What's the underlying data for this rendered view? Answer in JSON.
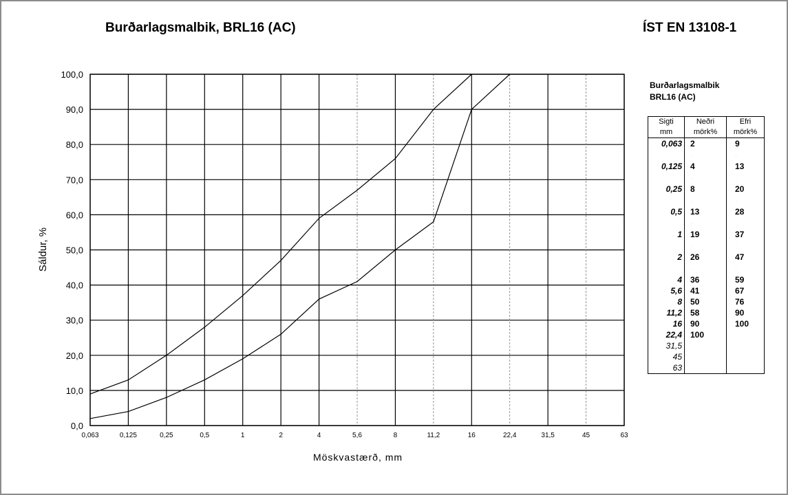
{
  "header": {
    "title": "Burðarlagsmalbik, BRL16 (AC)",
    "standard": "ÍST EN 13108-1"
  },
  "side": {
    "title_line1": "Burðarlagsmalbik",
    "title_line2": "BRL16 (AC)",
    "col_sieve": "Sigti",
    "col_sieve_unit": "mm",
    "col_lower": "Neðri",
    "col_lower_unit": "mörk%",
    "col_upper": "Efri",
    "col_upper_unit": "mörk%",
    "rows": [
      {
        "sieve": "0,063",
        "lower": "2",
        "upper": "9"
      },
      {
        "sieve": "",
        "lower": "",
        "upper": ""
      },
      {
        "sieve": "0,125",
        "lower": "4",
        "upper": "13"
      },
      {
        "sieve": "",
        "lower": "",
        "upper": ""
      },
      {
        "sieve": "0,25",
        "lower": "8",
        "upper": "20"
      },
      {
        "sieve": "",
        "lower": "",
        "upper": ""
      },
      {
        "sieve": "0,5",
        "lower": "13",
        "upper": "28"
      },
      {
        "sieve": "",
        "lower": "",
        "upper": ""
      },
      {
        "sieve": "1",
        "lower": "19",
        "upper": "37"
      },
      {
        "sieve": "",
        "lower": "",
        "upper": ""
      },
      {
        "sieve": "2",
        "lower": "26",
        "upper": "47"
      },
      {
        "sieve": "",
        "lower": "",
        "upper": ""
      },
      {
        "sieve": "4",
        "lower": "36",
        "upper": "59"
      },
      {
        "sieve": "5,6",
        "lower": "41",
        "upper": "67"
      },
      {
        "sieve": "8",
        "lower": "50",
        "upper": "76"
      },
      {
        "sieve": "11,2",
        "lower": "58",
        "upper": "90"
      },
      {
        "sieve": "16",
        "lower": "90",
        "upper": "100"
      },
      {
        "sieve": "22,4",
        "lower": "100",
        "upper": ""
      },
      {
        "sieve": "31,5",
        "lower": "",
        "upper": ""
      },
      {
        "sieve": "45",
        "lower": "",
        "upper": ""
      },
      {
        "sieve": "63",
        "lower": "",
        "upper": ""
      }
    ]
  },
  "chart_data": {
    "type": "line",
    "title": "Burðarlagsmalbik, BRL16 (AC)",
    "xlabel": "Möskvastærð,  mm",
    "ylabel": "Sáldur, %",
    "ylim": [
      0,
      100
    ],
    "y_ticks": [
      "0,0",
      "10,0",
      "20,0",
      "30,0",
      "40,0",
      "50,0",
      "60,0",
      "70,0",
      "80,0",
      "90,0",
      "100,0"
    ],
    "x_tick_labels": [
      "0,063",
      "0,125",
      "0,25",
      "0,5",
      "1",
      "2",
      "4",
      "5,6",
      "8",
      "11,2",
      "16",
      "22,4",
      "31,5",
      "45",
      "63"
    ],
    "x_tick_style": [
      "major",
      "major",
      "major",
      "major",
      "major",
      "major",
      "major",
      "minor",
      "major",
      "minor",
      "major",
      "minor",
      "major",
      "minor",
      "major"
    ],
    "grid": true,
    "series": [
      {
        "values": [
          9,
          13,
          20,
          28,
          37,
          47,
          59,
          67,
          76,
          90,
          100,
          null,
          null,
          null,
          null
        ]
      },
      {
        "values": [
          2,
          4,
          8,
          13,
          19,
          26,
          36,
          41,
          50,
          58,
          90,
          100,
          null,
          null,
          null
        ]
      }
    ]
  }
}
